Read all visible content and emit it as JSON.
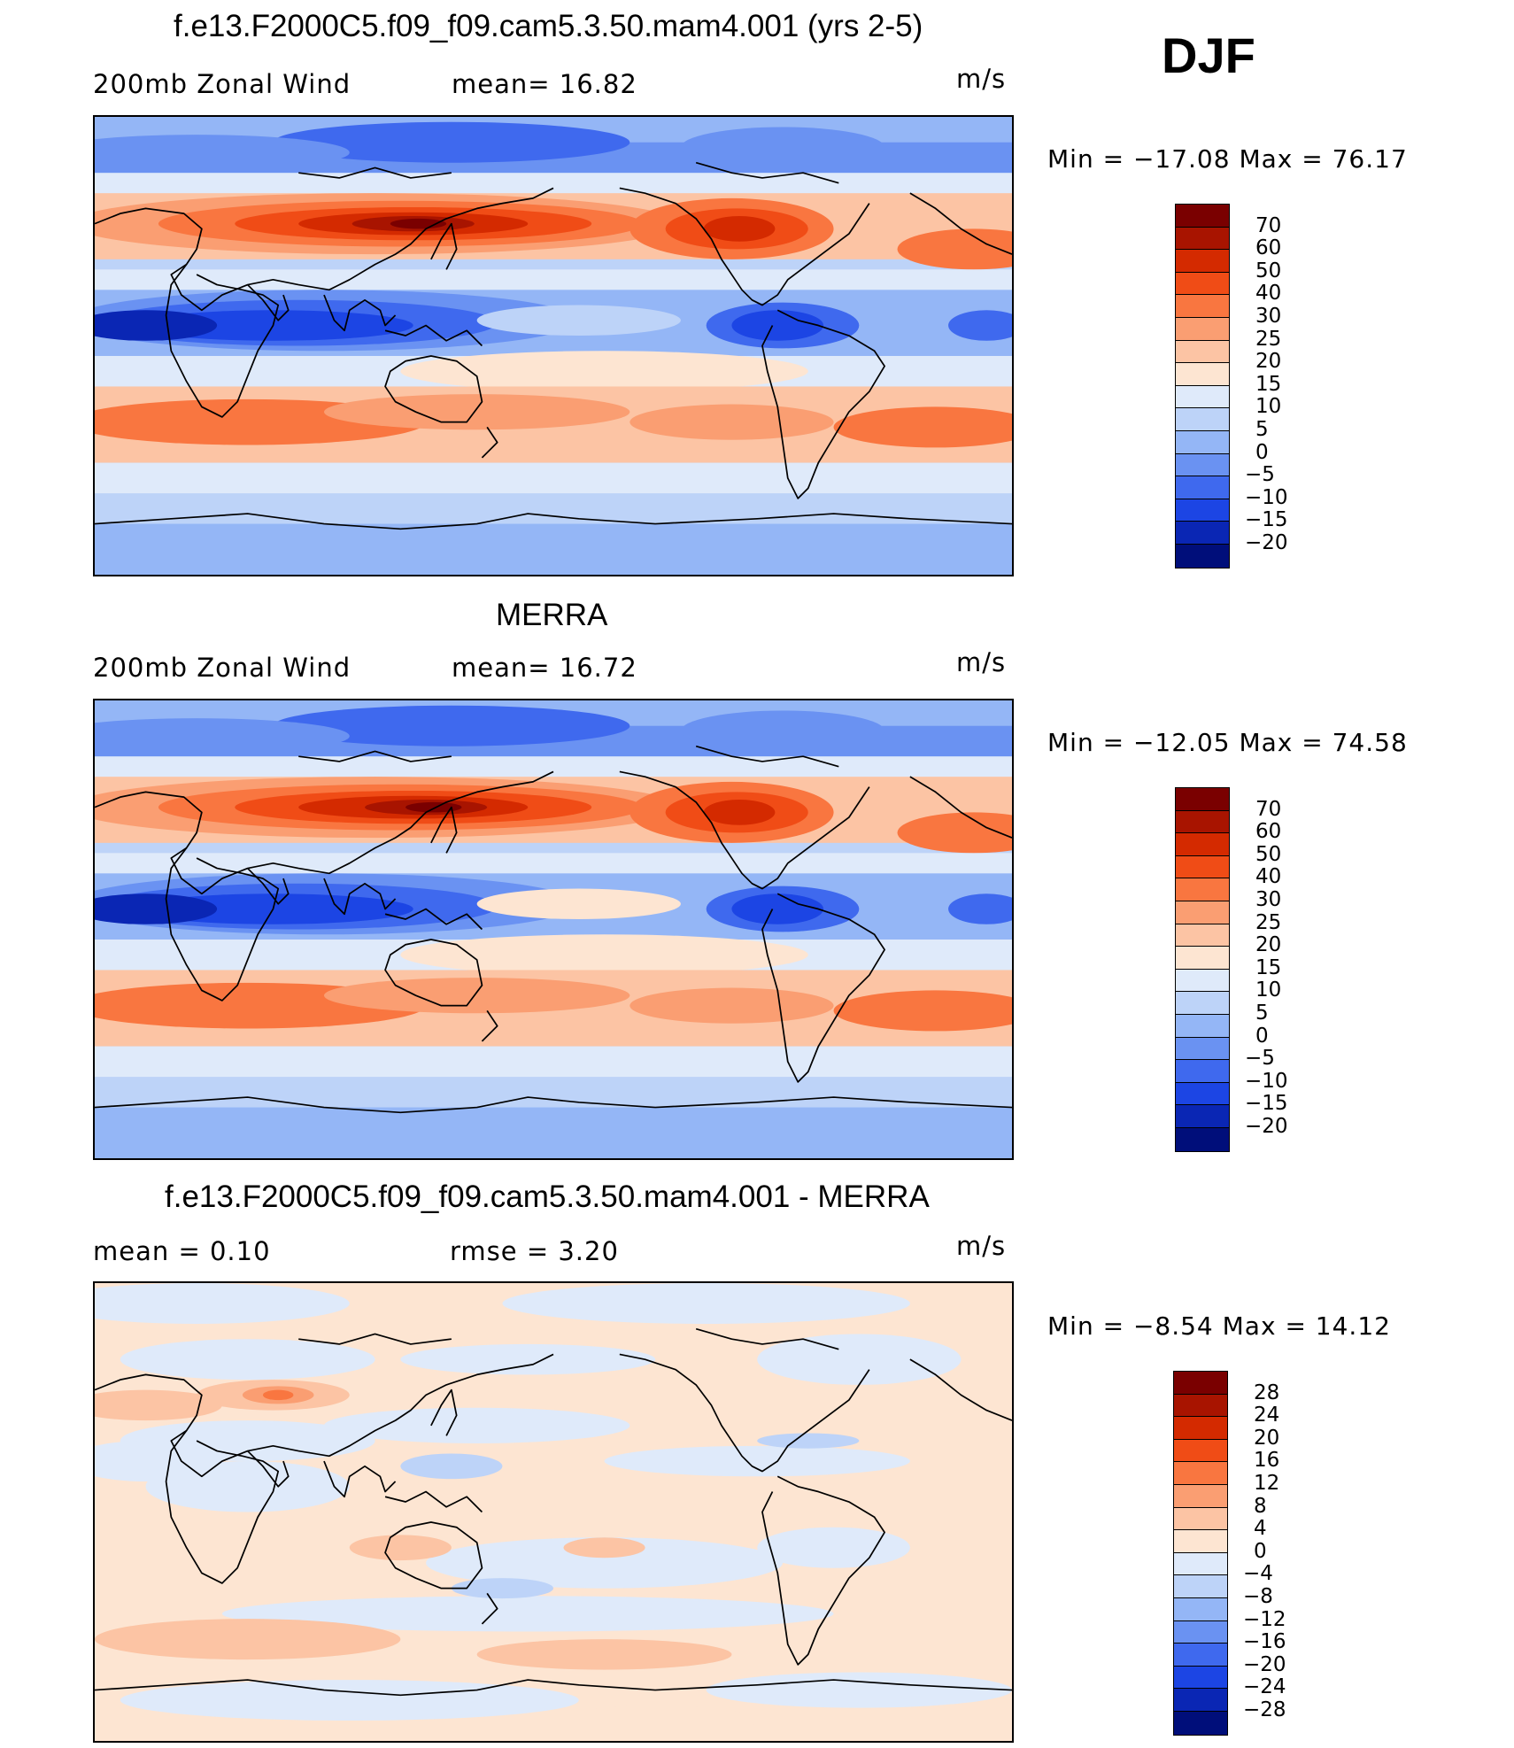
{
  "season": "DJF",
  "units": "m/s",
  "panels": [
    {
      "title": "f.e13.F2000C5.f09_f09.cam5.3.50.mam4.001 (yrs 2-5)",
      "left_label": "200mb Zonal Wind",
      "stat1": "mean=   16.82",
      "stat2": "",
      "units": "m/s",
      "minmax": "Min  =  −17.08  Max  =    76.17",
      "kind": "wind",
      "field": "model"
    },
    {
      "title": "MERRA",
      "left_label": "200mb Zonal Wind",
      "stat1": "mean=   16.72",
      "stat2": "",
      "units": "m/s",
      "minmax": "Min  =  −12.05  Max  =    74.58",
      "kind": "wind",
      "field": "obs"
    },
    {
      "title": "f.e13.F2000C5.f09_f09.cam5.3.50.mam4.001 - MERRA",
      "left_label": "mean  =     0.10",
      "stat1": "rmse  =     3.20",
      "stat2": "",
      "units": "m/s",
      "minmax": "Min  =    −8.54  Max  =    14.12",
      "kind": "diff",
      "field": "diff"
    }
  ],
  "colorbars": {
    "wind": {
      "labels": [
        "70",
        "60",
        "50",
        "40",
        "30",
        "25",
        "20",
        "15",
        "10",
        "5",
        "0",
        "−5",
        "−10",
        "−15",
        "−20"
      ],
      "colors": [
        "#7a0000",
        "#a81400",
        "#d42a00",
        "#f04c16",
        "#f97640",
        "#fa9e72",
        "#fcc4a4",
        "#fde5d2",
        "#dfeafa",
        "#bdd3f8",
        "#94b6f6",
        "#6a92f2",
        "#3f69ee",
        "#1c45e4",
        "#0a26b4",
        "#000e7a"
      ]
    },
    "diff": {
      "labels": [
        "28",
        "24",
        "20",
        "16",
        "12",
        "8",
        "4",
        "0",
        "−4",
        "−8",
        "−12",
        "−16",
        "−20",
        "−24",
        "−28"
      ],
      "colors": [
        "#7a0000",
        "#a81400",
        "#d42a00",
        "#f04c16",
        "#f97640",
        "#fa9e72",
        "#fcc4a4",
        "#fde5d2",
        "#dfeafa",
        "#bdd3f8",
        "#94b6f6",
        "#6a92f2",
        "#3f69ee",
        "#1c45e4",
        "#0a26b4",
        "#000e7a"
      ]
    }
  }
}
